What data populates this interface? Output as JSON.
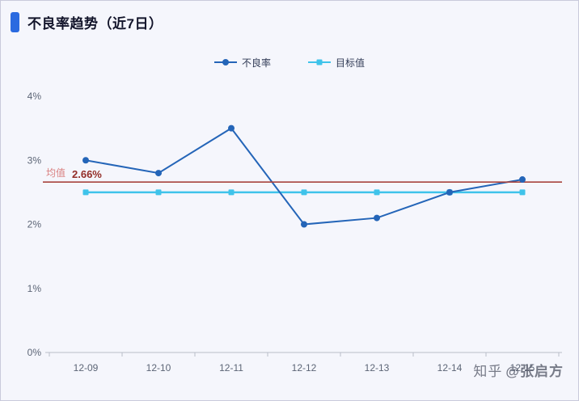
{
  "header": {
    "title": "不良率趋势（近7日）"
  },
  "legend": [
    {
      "key": "defect-rate",
      "label": "不良率",
      "color": "#2465b8",
      "marker": "circle"
    },
    {
      "key": "target",
      "label": "目标值",
      "color": "#3fc3ea",
      "marker": "square"
    }
  ],
  "watermark": {
    "site": "知乎",
    "handle": "@张启方"
  },
  "chart_data": {
    "type": "line",
    "title": "不良率趋势（近7日）",
    "categories": [
      "12-09",
      "12-10",
      "12-11",
      "12-12",
      "12-13",
      "12-14",
      "12-15"
    ],
    "series": [
      {
        "key": "defect-rate",
        "name": "不良率",
        "color": "#2465b8",
        "marker": "circle",
        "values": [
          3.0,
          2.8,
          3.5,
          2.0,
          2.1,
          2.5,
          2.7
        ]
      },
      {
        "key": "target",
        "name": "目标值",
        "color": "#3fc3ea",
        "marker": "square",
        "values": [
          2.5,
          2.5,
          2.5,
          2.5,
          2.5,
          2.5,
          2.5
        ]
      }
    ],
    "y_ticks": [
      "0%",
      "1%",
      "2%",
      "3%",
      "4%"
    ],
    "ylim": [
      0,
      4
    ],
    "unit": "%",
    "mean_line": {
      "label": "均值",
      "value": 2.66,
      "value_label": "2.66%",
      "color": "#a8433e"
    },
    "legend_position": "top-center",
    "grid": false
  }
}
